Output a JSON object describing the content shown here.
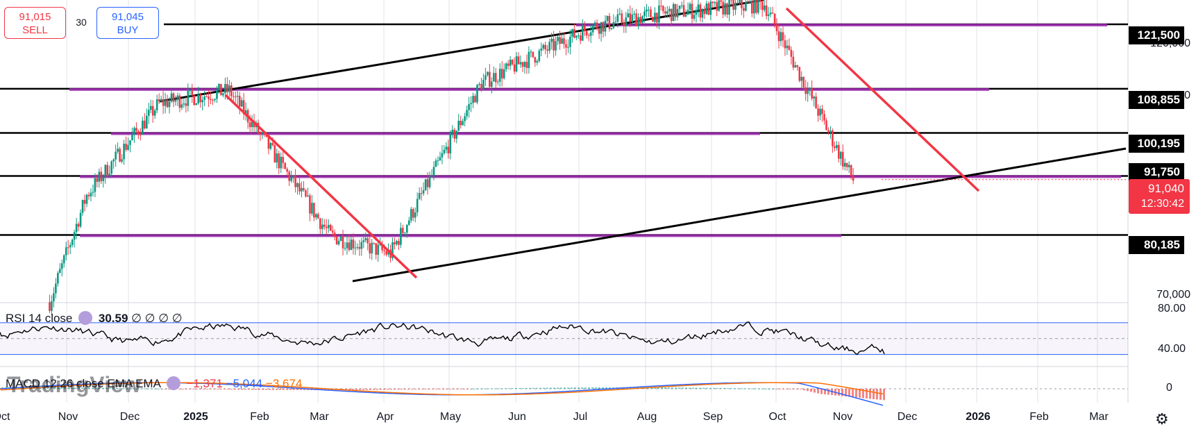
{
  "trade": {
    "sell_price": "91,015",
    "sell_label": "SELL",
    "buy_price": "91,045",
    "buy_label": "BUY",
    "spread": "30"
  },
  "price_labels": {
    "l121": "121,500",
    "l108": "108,855",
    "l100": "100,195",
    "l91": "91,750",
    "current": "91,040",
    "countdown": "12:30:42",
    "l80": "80,185"
  },
  "y_ticks": {
    "t120": "120,000",
    "t110": "110,000",
    "t70": "70,000"
  },
  "rsi": {
    "label": "RSI 14 close",
    "value": "30.59",
    "extras": "∅ ∅ ∅ ∅",
    "upper_tick": "80.00",
    "lower_tick": "40.00"
  },
  "macd": {
    "label": "MACD 12 26 close EMA EMA",
    "hist": "−1,371",
    "macd": "−5,044",
    "signal": "−3,674",
    "zero_tick": "0"
  },
  "x_labels": [
    "Oct",
    "Nov",
    "Dec",
    "2025",
    "Feb",
    "Mar",
    "Apr",
    "May",
    "Jun",
    "Jul",
    "Aug",
    "Sep",
    "Oct",
    "Nov",
    "Dec",
    "2026",
    "Feb",
    "Mar"
  ],
  "watermark": "TradingView",
  "icons": {
    "settings": "gear-icon"
  },
  "colors": {
    "up": "#089981",
    "down": "#f23645",
    "zone": "#9c27b0",
    "trend_red": "#f23645",
    "line": "#000000"
  },
  "chart_data": {
    "type": "candlestick",
    "ylim": [
      68000,
      126000
    ],
    "x_range": [
      "2024-10-01",
      "2026-03-31"
    ],
    "horizontal_levels": [
      121500,
      108855,
      100195,
      91750,
      80185
    ],
    "last_price": 91040,
    "key_closes": [
      {
        "date": "2024-10-25",
        "value": 67000
      },
      {
        "date": "2024-11-12",
        "value": 88000
      },
      {
        "date": "2024-12-17",
        "value": 106000
      },
      {
        "date": "2025-01-20",
        "value": 108500
      },
      {
        "date": "2025-03-10",
        "value": 80000
      },
      {
        "date": "2025-04-08",
        "value": 76500
      },
      {
        "date": "2025-05-22",
        "value": 110000
      },
      {
        "date": "2025-07-14",
        "value": 121000
      },
      {
        "date": "2025-08-14",
        "value": 123500
      },
      {
        "date": "2025-10-06",
        "value": 125500
      },
      {
        "date": "2025-11-14",
        "value": 94000
      },
      {
        "date": "2025-11-18",
        "value": 91040
      }
    ],
    "rsi_last": 30.59,
    "rsi_levels": [
      70,
      30
    ],
    "macd_last": {
      "hist": -1371,
      "macd": -5044,
      "signal": -3674
    }
  }
}
